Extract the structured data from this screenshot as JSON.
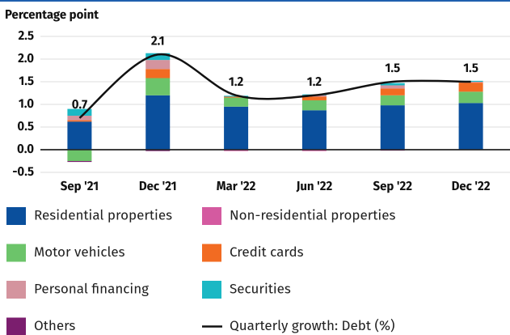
{
  "chart_data": {
    "type": "bar",
    "title": "Percentage point",
    "categories": [
      "Sep '21",
      "Dec '21",
      "Mar '22",
      "Jun '22",
      "Sep '22",
      "Dec '22"
    ],
    "ylim": [
      -0.5,
      2.5
    ],
    "yticks": [
      {
        "value": -0.5,
        "label": "-0.5"
      },
      {
        "value": 0,
        "label": "0.0"
      },
      0.5,
      {
        "value": 1,
        "label": "1.0"
      },
      1.5,
      {
        "value": 2,
        "label": "2.0"
      },
      2.5
    ],
    "grid": true,
    "stacked": true,
    "series": [
      {
        "name": "Residential properties",
        "color": "#0a4f9c",
        "values": [
          0.62,
          1.2,
          0.95,
          0.87,
          0.98,
          1.03
        ]
      },
      {
        "name": "Non-residential properties",
        "color": "#d45aa0",
        "values": [
          0,
          0,
          -0.03,
          -0.03,
          0,
          0
        ]
      },
      {
        "name": "Motor vehicles",
        "color": "#6cc46a",
        "values": [
          -0.25,
          0.38,
          0.2,
          0.22,
          0.22,
          0.25
        ]
      },
      {
        "name": "Credit cards",
        "color": "#f26b22",
        "values": [
          0.03,
          0.2,
          0.02,
          0.08,
          0.15,
          0.2
        ]
      },
      {
        "name": "Personal financing",
        "color": "#d4949e",
        "values": [
          0.1,
          0.2,
          0,
          0.03,
          0.07,
          0.02
        ]
      },
      {
        "name": "Securities",
        "color": "#1bb8c4",
        "values": [
          0.15,
          0.15,
          0.02,
          0.02,
          0.05,
          0.02
        ]
      },
      {
        "name": "Others",
        "color": "#7b1e6e",
        "values": [
          -0.02,
          -0.03,
          0,
          0,
          -0.02,
          0
        ]
      },
      {
        "name": "Quarterly growth: Debt (%)",
        "color": "#111111",
        "type": "line",
        "values": [
          0.7,
          2.1,
          1.2,
          1.2,
          1.5,
          1.5
        ]
      }
    ]
  }
}
